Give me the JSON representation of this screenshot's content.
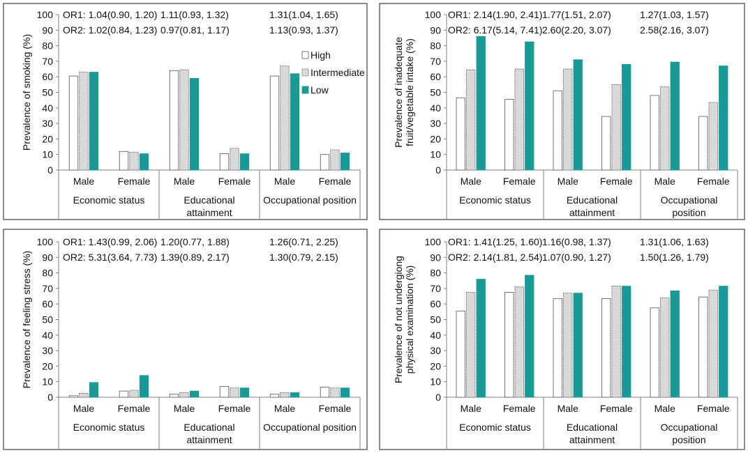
{
  "colors": {
    "high": "#ffffff",
    "intermediate": "#d9d9d9",
    "low": "#1a9a96",
    "axis": "#808080",
    "border": "#4d4d4d"
  },
  "legend": {
    "items": [
      "High",
      "Intermediate",
      "Low"
    ]
  },
  "chart_data": [
    {
      "type": "bar",
      "ylabel_lines": [
        "Prevalence of smoking (%)"
      ],
      "ylim": [
        0,
        100
      ],
      "yticks": [
        0,
        10,
        20,
        30,
        40,
        50,
        60,
        70,
        80,
        90,
        100
      ],
      "groups": [
        {
          "label_lines": [
            "Economic status"
          ],
          "subgroups": [
            {
              "label": "Male",
              "values": [
                60.5,
                63,
                63
              ]
            },
            {
              "label": "Female",
              "values": [
                12,
                11.5,
                10.5
              ]
            }
          ]
        },
        {
          "label_lines": [
            "Educational",
            "attainment"
          ],
          "subgroups": [
            {
              "label": "Male",
              "values": [
                64,
                64.5,
                59
              ]
            },
            {
              "label": "Female",
              "values": [
                10.5,
                14,
                10.5
              ]
            }
          ]
        },
        {
          "label_lines": [
            "Occupational position"
          ],
          "subgroups": [
            {
              "label": "Male",
              "values": [
                60.5,
                67,
                62
              ]
            },
            {
              "label": "Female",
              "values": [
                10,
                13,
                11
              ]
            }
          ]
        }
      ],
      "or_rows": [
        {
          "prefix": "OR1: ",
          "values": [
            "1.04(0.90, 1.20)",
            "1.11(0.93, 1.32)",
            "1.31(1.04, 1.65)"
          ]
        },
        {
          "prefix": "OR2: ",
          "values": [
            "1.02(0.84, 1.23)",
            "0.97(0.81, 1.17)",
            "1.13(0.93, 1.37)"
          ]
        }
      ],
      "show_legend": true
    },
    {
      "type": "bar",
      "ylabel_lines": [
        "Prevalence of inadequate",
        "fruit/vegetable intake (%)"
      ],
      "ylim": [
        0,
        100
      ],
      "yticks": [
        0,
        10,
        20,
        30,
        40,
        50,
        60,
        70,
        80,
        90,
        100
      ],
      "groups": [
        {
          "label_lines": [
            "Economic status"
          ],
          "subgroups": [
            {
              "label": "Male",
              "values": [
                46.5,
                64.5,
                86
              ]
            },
            {
              "label": "Female",
              "values": [
                45.5,
                65,
                82.5
              ]
            }
          ]
        },
        {
          "label_lines": [
            "Educational",
            "attainment"
          ],
          "subgroups": [
            {
              "label": "Male",
              "values": [
                51,
                65,
                71
              ]
            },
            {
              "label": "Female",
              "values": [
                34.5,
                55,
                68
              ]
            }
          ]
        },
        {
          "label_lines": [
            "Occupational",
            "position"
          ],
          "subgroups": [
            {
              "label": "Male",
              "values": [
                48,
                53.5,
                69.5
              ]
            },
            {
              "label": "Female",
              "values": [
                34.5,
                43.5,
                67
              ]
            }
          ]
        }
      ],
      "or_rows": [
        {
          "prefix": "OR1: ",
          "values": [
            "2.14(1.90, 2.41)",
            "1.77(1.51, 2.07)",
            "1.27(1.03, 1.57)"
          ]
        },
        {
          "prefix": "OR2: ",
          "values": [
            "6.17(5.14, 7.41)",
            "2.60(2.20, 3.07)",
            "2.58(2.16, 3.07)"
          ]
        }
      ],
      "show_legend": false
    },
    {
      "type": "bar",
      "ylabel_lines": [
        "Prevalence of feeling stress (%)"
      ],
      "ylim": [
        0,
        100
      ],
      "yticks": [
        0,
        10,
        20,
        30,
        40,
        50,
        60,
        70,
        80,
        90,
        100
      ],
      "groups": [
        {
          "label_lines": [
            "Economic status"
          ],
          "subgroups": [
            {
              "label": "Male",
              "values": [
                1,
                2.5,
                9.5
              ]
            },
            {
              "label": "Female",
              "values": [
                4,
                4.5,
                14
              ]
            }
          ]
        },
        {
          "label_lines": [
            "Educational",
            "attainment"
          ],
          "subgroups": [
            {
              "label": "Male",
              "values": [
                2,
                3,
                4
              ]
            },
            {
              "label": "Female",
              "values": [
                7,
                6,
                6
              ]
            }
          ]
        },
        {
          "label_lines": [
            "Occupational position"
          ],
          "subgroups": [
            {
              "label": "Male",
              "values": [
                2,
                3,
                3
              ]
            },
            {
              "label": "Female",
              "values": [
                6.5,
                6,
                6
              ]
            }
          ]
        }
      ],
      "or_rows": [
        {
          "prefix": "OR1: ",
          "values": [
            "1.43(0.99, 2.06)",
            "1.20(0.77, 1.88)",
            "1.26(0.71, 2.25)"
          ]
        },
        {
          "prefix": "OR2: ",
          "values": [
            "5.31(3.64, 7.73)",
            "1.39(0.89, 2.17)",
            "1.30(0.79, 2.15)"
          ]
        }
      ],
      "show_legend": false
    },
    {
      "type": "bar",
      "ylabel_lines": [
        "Prevalence of not undergiong",
        "physical examination (%)"
      ],
      "ylim": [
        0,
        100
      ],
      "yticks": [
        0,
        10,
        20,
        30,
        40,
        50,
        60,
        70,
        80,
        90,
        100
      ],
      "groups": [
        {
          "label_lines": [
            "Economic status"
          ],
          "subgroups": [
            {
              "label": "Male",
              "values": [
                55.5,
                67.5,
                76
              ]
            },
            {
              "label": "Female",
              "values": [
                67.5,
                71,
                78.5
              ]
            }
          ]
        },
        {
          "label_lines": [
            "Educational",
            "attainment"
          ],
          "subgroups": [
            {
              "label": "Male",
              "values": [
                63.5,
                67,
                67
              ]
            },
            {
              "label": "Female",
              "values": [
                63.5,
                71.5,
                71.5
              ]
            }
          ]
        },
        {
          "label_lines": [
            "Occupational",
            "position"
          ],
          "subgroups": [
            {
              "label": "Male",
              "values": [
                57.5,
                64,
                68.5
              ]
            },
            {
              "label": "Female",
              "values": [
                64.5,
                69,
                71.5
              ]
            }
          ]
        }
      ],
      "or_rows": [
        {
          "prefix": "OR1: ",
          "values": [
            "1.41(1.25, 1.60)",
            "1.16(0.98, 1.37)",
            "1.31(1.06, 1.63)"
          ]
        },
        {
          "prefix": "OR2: ",
          "values": [
            "2.14(1.81, 2.54)",
            "1.07(0.90, 1.27)",
            "1.50(1.26, 1.79)"
          ]
        }
      ],
      "show_legend": false
    }
  ]
}
